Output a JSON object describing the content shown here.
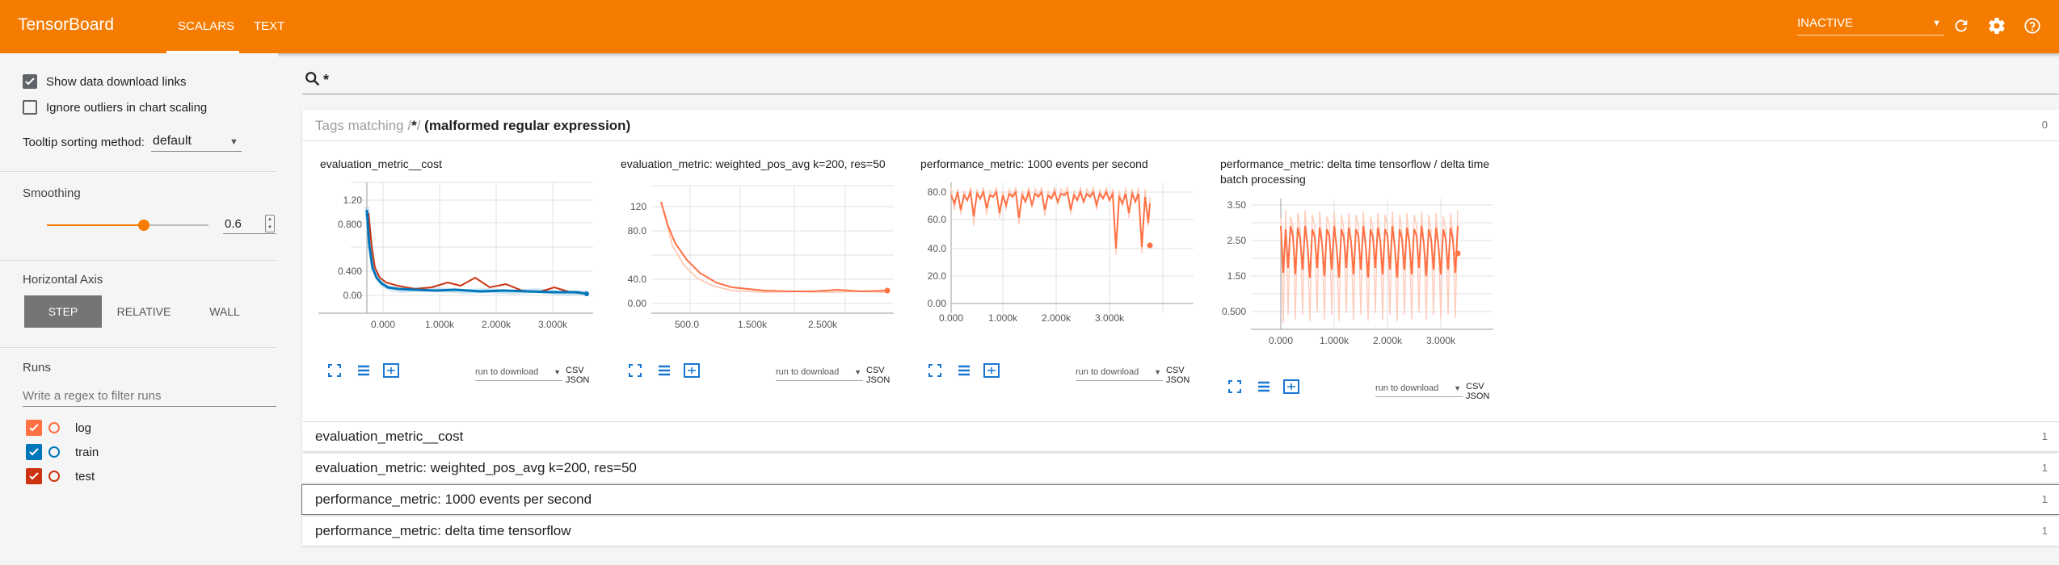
{
  "header": {
    "brand": "TensorBoard",
    "tabs": [
      {
        "label": "SCALARS"
      },
      {
        "label": "TEXT"
      }
    ],
    "status_select": "INACTIVE",
    "icons": [
      "refresh-icon",
      "gear-icon",
      "help-icon"
    ],
    "accent_color": "#f57c00"
  },
  "sidebar": {
    "show_download_links": {
      "label": "Show data download links",
      "checked": true
    },
    "ignore_outliers": {
      "label": "Ignore outliers in chart scaling",
      "checked": false
    },
    "tooltip_sorting": {
      "label": "Tooltip sorting method:",
      "value": "default"
    },
    "smoothing": {
      "title": "Smoothing",
      "value": "0.6",
      "fraction": 0.6
    },
    "horizontal_axis": {
      "title": "Horizontal Axis",
      "options": [
        "STEP",
        "RELATIVE",
        "WALL"
      ],
      "selected": "STEP"
    },
    "runs": {
      "title": "Runs",
      "filter_placeholder": "Write a regex to filter runs",
      "items": [
        {
          "name": "log",
          "color": "#ff7043",
          "checked": true
        },
        {
          "name": "train",
          "color": "#0077bb",
          "checked": true
        },
        {
          "name": "test",
          "color": "#cc3311",
          "checked": true
        }
      ]
    }
  },
  "main": {
    "search_value": "*",
    "category": {
      "prefix": "Tags matching /",
      "regex": "*",
      "suffix": "/",
      "note": "(malformed regular expression)",
      "count": "0"
    },
    "card_controls": {
      "run_download": "run to download",
      "csv_json": "CSV JSON"
    },
    "cards": [
      {
        "title": "evaluation_metric__cost",
        "y_ticks": [
          "1.20",
          "0.800",
          "0.400",
          "0.00"
        ],
        "x_ticks": [
          "0.000",
          "1.000k",
          "2.000k",
          "3.000k"
        ]
      },
      {
        "title": "evaluation_metric: weighted_pos_avg k=200, res=50",
        "y_ticks": [
          "120",
          "80.0",
          "40.0",
          "0.00"
        ],
        "x_ticks": [
          "500.0",
          "1.500k",
          "2.500k"
        ]
      },
      {
        "title": "performance_metric: 1000 events per second",
        "y_ticks": [
          "80.0",
          "60.0",
          "40.0",
          "20.0",
          "0.00"
        ],
        "x_ticks": [
          "0.000",
          "1.000k",
          "2.000k",
          "3.000k"
        ]
      },
      {
        "title": "performance_metric: delta time tensorflow / delta time batch processing",
        "y_ticks": [
          "3.50",
          "2.50",
          "1.50",
          "0.500"
        ],
        "x_ticks": [
          "0.000",
          "1.000k",
          "2.000k",
          "3.000k"
        ]
      }
    ],
    "collapsed_categories": [
      {
        "label": "evaluation_metric__cost",
        "count": "1"
      },
      {
        "label": "evaluation_metric: weighted_pos_avg k=200, res=50",
        "count": "1"
      },
      {
        "label": "performance_metric: 1000 events per second",
        "count": "1"
      },
      {
        "label": "performance_metric: delta time tensorflow",
        "count": "1"
      }
    ]
  }
}
